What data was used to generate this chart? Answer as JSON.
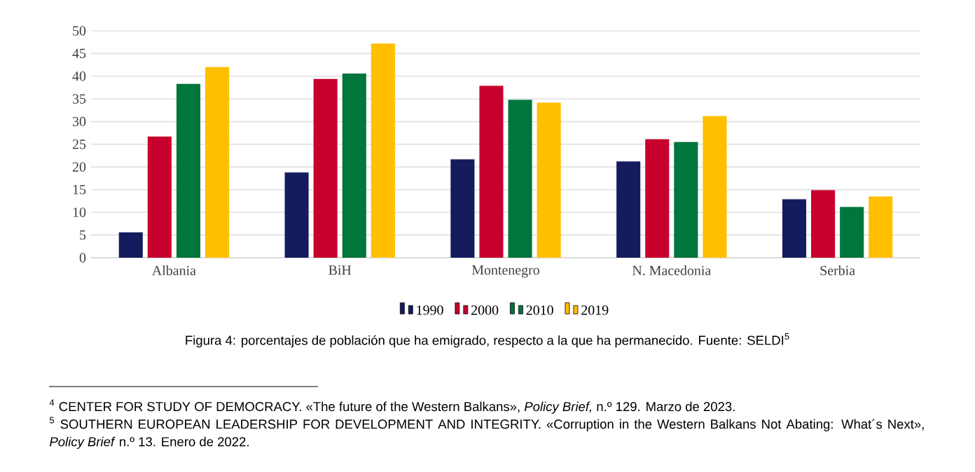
{
  "chart_data": {
    "type": "bar",
    "categories": [
      "Albania",
      "BiH",
      "Montenegro",
      "N. Macedonia",
      "Serbia"
    ],
    "series": [
      {
        "name": "1990",
        "color": "#141c5e",
        "values": [
          5.6,
          18.8,
          21.7,
          21.2,
          12.9
        ]
      },
      {
        "name": "2000",
        "color": "#c8002d",
        "values": [
          26.7,
          39.4,
          37.9,
          26.1,
          14.9
        ]
      },
      {
        "name": "2010",
        "color": "#00753c",
        "values": [
          38.3,
          40.6,
          34.8,
          25.5,
          11.2
        ]
      },
      {
        "name": "2019",
        "color": "#ffbf00",
        "values": [
          42.0,
          47.2,
          34.2,
          31.2,
          13.5
        ]
      }
    ],
    "ylim": [
      0,
      50
    ],
    "yticks": [
      0,
      5,
      10,
      15,
      20,
      25,
      30,
      35,
      40,
      45,
      50
    ],
    "grid": "y",
    "legend": "bottom",
    "annotations": [
      "Figura 4: porcentajes de población que ha emigrado, respecto a la que ha permanecido. Fuente: SELDI$^{5}$",
      "$^{4}$ CENTER FOR STUDY OF DEMOCRACY. «The future of the Western Balkans», *Policy Brief,* n.º 129. Marzo de 2023.",
      "$^{5}$ SOUTHERN EUROPEAN LEADERSHIP FOR DEVELOPMENT AND INTEGRITY. «Corruption in the Western Balkans Not Abating: What´s Next», *Policy Brief* n.º 13. Enero de 2022."
    ]
  }
}
